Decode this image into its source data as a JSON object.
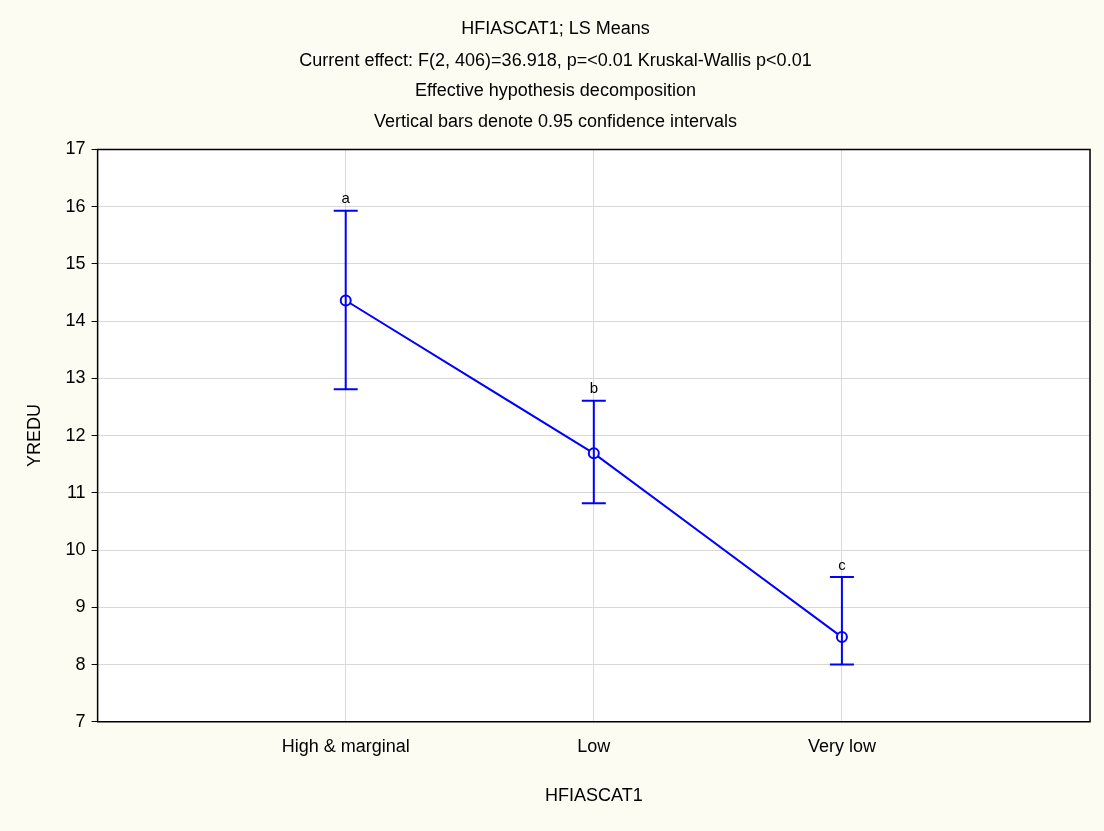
{
  "chart_data": {
    "type": "line",
    "title": "HFIASCAT1; LS Means",
    "subtitle": "Current effect: F(2, 406)=36.918, p=<0.01 Kruskal-Wallis p<0.01\nEffective hypothesis decomposition\nVertical bars denote 0.95 confidence intervals",
    "xlabel": "HFIASCAT1",
    "ylabel": "YREDU",
    "categories": [
      "High & marginal",
      "Low",
      "Very low"
    ],
    "series": [
      {
        "color": "#0000ff",
        "values": [
          14.36,
          11.69,
          8.48
        ],
        "errors": [
          [
            12.81,
            15.93
          ],
          [
            10.82,
            12.61
          ],
          [
            8.0,
            9.53
          ]
        ]
      }
    ],
    "ylim": [
      7,
      17
    ],
    "yticks": [
      7,
      8,
      9,
      10,
      11,
      12,
      13,
      14,
      15,
      16,
      17
    ],
    "grid": true,
    "legend": false,
    "marker": "circle",
    "line_style": "solid",
    "annotations": [
      {
        "text": "a",
        "x": "High & marginal",
        "y": 15.93
      },
      {
        "text": "b",
        "x": "Low",
        "y": 12.61
      },
      {
        "text": "c",
        "x": "Very low",
        "y": 9.53
      }
    ]
  }
}
